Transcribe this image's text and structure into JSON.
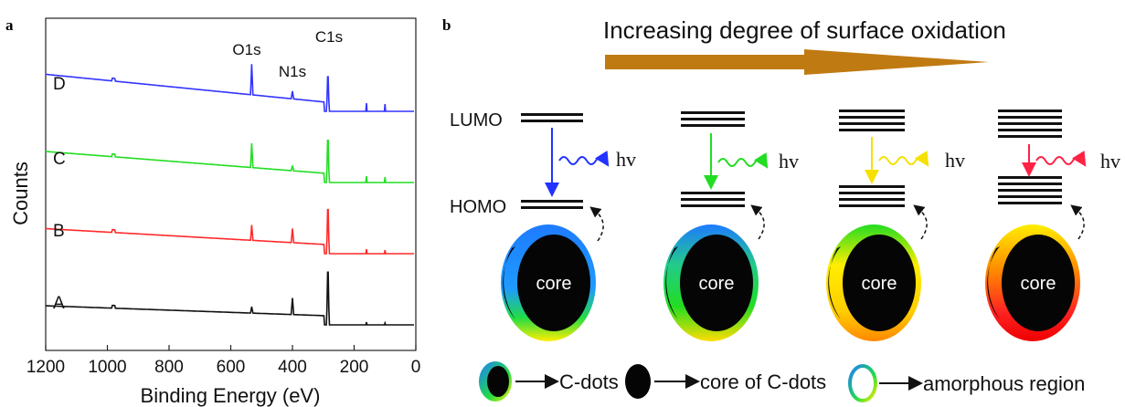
{
  "panel_a": {
    "letter": "a",
    "xlabel": "Binding Energy (eV)",
    "ylabel": "Counts",
    "peaks": [
      "O1s",
      "N1s",
      "C1s"
    ]
  },
  "panel_b": {
    "letter": "b",
    "title": "Increasing degree of surface oxidation",
    "lumo": "LUMO",
    "homo": "HOMO",
    "hv": "hv",
    "core": "core",
    "legend": [
      "C-dots",
      "core of C-dots",
      "amorphous region"
    ]
  },
  "colors": {
    "A": "#111111",
    "B": "#ff2a2a",
    "C": "#22dd22",
    "D": "#3333ff",
    "arrow": "#c07a12"
  },
  "chart_data": {
    "type": "line",
    "xlabel": "Binding Energy (eV)",
    "ylabel": "Counts",
    "xlim": [
      1200,
      0
    ],
    "x_reversed": true,
    "xticks": [
      1200,
      1000,
      800,
      600,
      400,
      200,
      0
    ],
    "peak_positions": {
      "O1s": 532,
      "N1s": 400,
      "C1s": 285
    },
    "series": [
      {
        "name": "A",
        "color": "#111111",
        "baseline": 0,
        "peaks": {
          "O1s": 0.5,
          "N1s": 1.3,
          "C1s": 5.5
        }
      },
      {
        "name": "B",
        "color": "#ff2a2a",
        "baseline": 1,
        "peaks": {
          "O1s": 1.2,
          "N1s": 1.1,
          "C1s": 4.6
        }
      },
      {
        "name": "C",
        "color": "#22dd22",
        "baseline": 2,
        "peaks": {
          "O1s": 1.9,
          "N1s": 0.4,
          "C1s": 4.4
        }
      },
      {
        "name": "D",
        "color": "#3333ff",
        "baseline": 3,
        "peaks": {
          "O1s": 2.4,
          "N1s": 0.6,
          "C1s": 3.6
        }
      }
    ]
  }
}
